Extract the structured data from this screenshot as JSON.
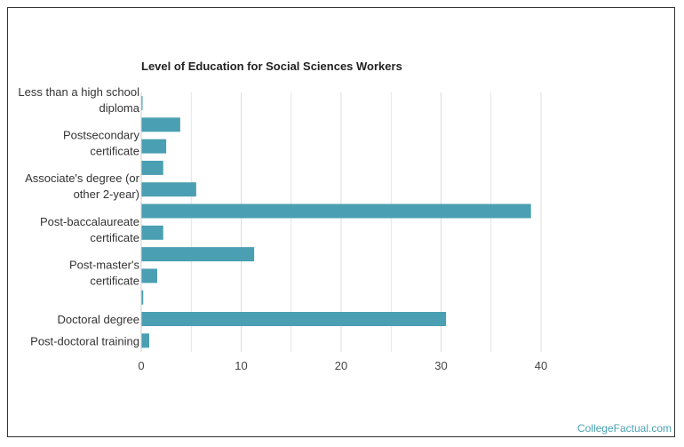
{
  "credit": "CollegeFactual.com",
  "colors": {
    "bar": "#4a9fb2",
    "grid": "#dddddd",
    "axis_text": "#444444",
    "label_text": "#333333"
  },
  "chart_data": {
    "type": "bar",
    "orientation": "horizontal",
    "title": "Level of Education for Social Sciences Workers",
    "xlabel": "",
    "ylabel": "",
    "xlim": [
      0,
      42
    ],
    "x_ticks": [
      "0",
      "10",
      "20",
      "30",
      "40"
    ],
    "grid": true,
    "categories": [
      "Less than a high school diploma",
      "",
      "Postsecondary certificate",
      "",
      "Associate's degree (or other 2-year)",
      "",
      "Post-baccalaureate certificate",
      "",
      "Post-master's certificate",
      "",
      "Doctoral degree",
      "Post-doctoral training"
    ],
    "category_label_lines": [
      [
        "Less than a high school",
        "diploma"
      ],
      [],
      [
        "Postsecondary",
        "certificate"
      ],
      [],
      [
        "Associate's degree (or",
        "other 2-year)"
      ],
      [],
      [
        "Post-baccalaureate",
        "certificate"
      ],
      [],
      [
        "Post-master's",
        "certificate"
      ],
      [],
      [
        "Doctoral degree"
      ],
      [
        "Post-doctoral training"
      ]
    ],
    "values": [
      0.1,
      3.9,
      2.5,
      2.2,
      5.5,
      39,
      2.2,
      11.3,
      1.6,
      0.2,
      30.5,
      0.8
    ]
  }
}
